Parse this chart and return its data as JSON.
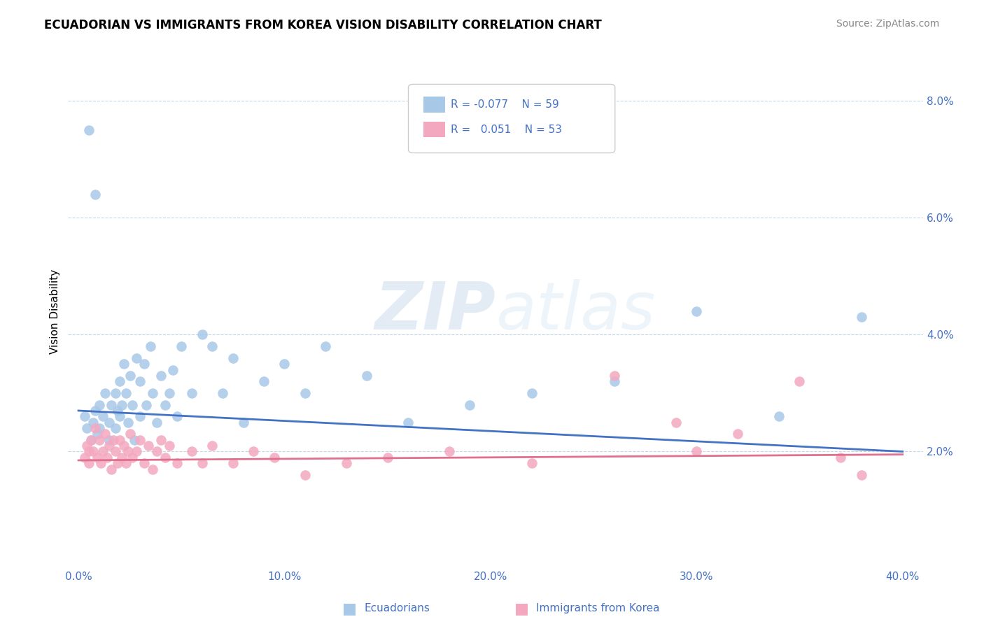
{
  "title": "ECUADORIAN VS IMMIGRANTS FROM KOREA VISION DISABILITY CORRELATION CHART",
  "source": "Source: ZipAtlas.com",
  "ylabel": "Vision Disability",
  "xlim": [
    -0.005,
    0.41
  ],
  "ylim": [
    0.0,
    0.088
  ],
  "xticks": [
    0.0,
    0.1,
    0.2,
    0.3,
    0.4
  ],
  "xtick_labels": [
    "0.0%",
    "10.0%",
    "20.0%",
    "30.0%",
    "40.0%"
  ],
  "yticks": [
    0.02,
    0.04,
    0.06,
    0.08
  ],
  "ytick_labels": [
    "2.0%",
    "4.0%",
    "6.0%",
    "8.0%"
  ],
  "color_blue": "#a8c8e8",
  "color_pink": "#f4a8c0",
  "line_blue": "#4472c4",
  "line_pink": "#e07090",
  "watermark": "ZIPatlas",
  "blue_scatter_x": [
    0.003,
    0.004,
    0.005,
    0.006,
    0.007,
    0.008,
    0.009,
    0.01,
    0.01,
    0.012,
    0.013,
    0.015,
    0.015,
    0.016,
    0.018,
    0.018,
    0.019,
    0.02,
    0.02,
    0.021,
    0.022,
    0.023,
    0.024,
    0.025,
    0.026,
    0.027,
    0.028,
    0.03,
    0.03,
    0.032,
    0.033,
    0.035,
    0.036,
    0.038,
    0.04,
    0.042,
    0.044,
    0.046,
    0.048,
    0.05,
    0.055,
    0.06,
    0.065,
    0.07,
    0.075,
    0.08,
    0.09,
    0.1,
    0.11,
    0.12,
    0.14,
    0.16,
    0.19,
    0.22,
    0.26,
    0.3,
    0.34,
    0.38,
    0.008
  ],
  "blue_scatter_y": [
    0.026,
    0.024,
    0.075,
    0.022,
    0.025,
    0.027,
    0.023,
    0.028,
    0.024,
    0.026,
    0.03,
    0.025,
    0.022,
    0.028,
    0.03,
    0.024,
    0.027,
    0.032,
    0.026,
    0.028,
    0.035,
    0.03,
    0.025,
    0.033,
    0.028,
    0.022,
    0.036,
    0.032,
    0.026,
    0.035,
    0.028,
    0.038,
    0.03,
    0.025,
    0.033,
    0.028,
    0.03,
    0.034,
    0.026,
    0.038,
    0.03,
    0.04,
    0.038,
    0.03,
    0.036,
    0.025,
    0.032,
    0.035,
    0.03,
    0.038,
    0.033,
    0.025,
    0.028,
    0.03,
    0.032,
    0.044,
    0.026,
    0.043,
    0.064
  ],
  "pink_scatter_x": [
    0.003,
    0.004,
    0.005,
    0.006,
    0.007,
    0.008,
    0.009,
    0.01,
    0.011,
    0.012,
    0.013,
    0.014,
    0.015,
    0.016,
    0.017,
    0.018,
    0.019,
    0.02,
    0.021,
    0.022,
    0.023,
    0.024,
    0.025,
    0.026,
    0.028,
    0.03,
    0.032,
    0.034,
    0.036,
    0.038,
    0.04,
    0.042,
    0.044,
    0.048,
    0.055,
    0.06,
    0.065,
    0.075,
    0.085,
    0.095,
    0.11,
    0.13,
    0.15,
    0.18,
    0.22,
    0.26,
    0.29,
    0.3,
    0.32,
    0.35,
    0.37,
    0.38,
    0.005
  ],
  "pink_scatter_y": [
    0.019,
    0.021,
    0.018,
    0.022,
    0.02,
    0.024,
    0.019,
    0.022,
    0.018,
    0.02,
    0.023,
    0.019,
    0.021,
    0.017,
    0.022,
    0.02,
    0.018,
    0.022,
    0.019,
    0.021,
    0.018,
    0.02,
    0.023,
    0.019,
    0.02,
    0.022,
    0.018,
    0.021,
    0.017,
    0.02,
    0.022,
    0.019,
    0.021,
    0.018,
    0.02,
    0.018,
    0.021,
    0.018,
    0.02,
    0.019,
    0.016,
    0.018,
    0.019,
    0.02,
    0.018,
    0.033,
    0.025,
    0.02,
    0.023,
    0.032,
    0.019,
    0.016,
    0.02
  ]
}
